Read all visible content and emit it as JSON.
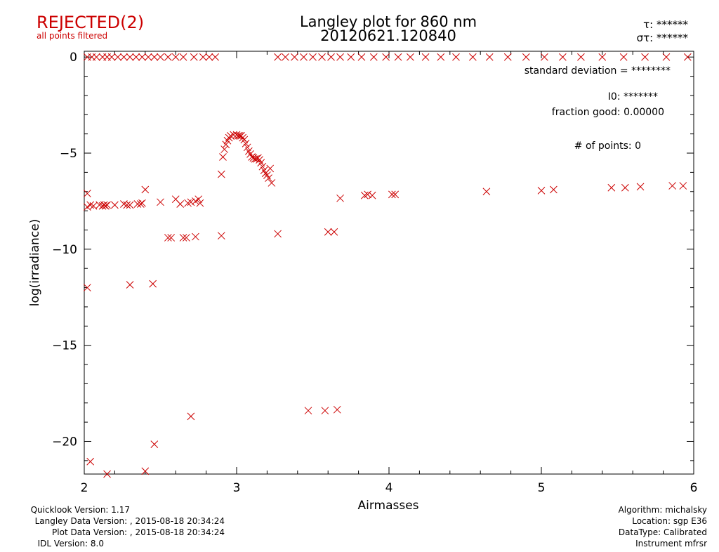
{
  "status": {
    "label": "REJECTED(2)",
    "sublabel": "all points filtered"
  },
  "header": {
    "title": "Langley plot for 860 nm",
    "subtitle": "20120621.120840",
    "tau_label": "τ: ******",
    "sigma_label": "στ: ******"
  },
  "stats": {
    "std_dev": "standard deviation  = ********",
    "i0": "I0: *******",
    "fraction_good": "fraction good: 0.00000",
    "num_points": "# of points:     0"
  },
  "footer_left": [
    "Quicklook Version: 1.17",
    "Langley Data Version: , 2015-08-18 20:34:24",
    "Plot Data Version: , 2015-08-18 20:34:24",
    "IDL Version: 8.0"
  ],
  "footer_right": [
    "Algorithm: michalsky",
    "Location: sgp E36",
    "DataType: Calibrated",
    "Instrument mfrsr"
  ],
  "colors": {
    "points": "#cc0000",
    "status": "#cc0000",
    "axis": "#000000"
  },
  "chart_data": {
    "type": "scatter",
    "title": "Langley plot for 860 nm",
    "subtitle": "20120621.120840",
    "xlabel": "Airmasses",
    "ylabel": "log(irradiance)",
    "xlim": [
      2,
      6
    ],
    "ylim": [
      -21.7,
      0.3
    ],
    "xticks": [
      2,
      3,
      4,
      5,
      6
    ],
    "yticks": [
      0,
      -5,
      -10,
      -15,
      -20
    ],
    "grid": false,
    "marker": "x",
    "points": [
      [
        2.02,
        -7.1
      ],
      [
        2.02,
        -7.8
      ],
      [
        2.04,
        -7.7
      ],
      [
        2.06,
        -7.75
      ],
      [
        2.1,
        -7.7
      ],
      [
        2.12,
        -7.75
      ],
      [
        2.13,
        -7.7
      ],
      [
        2.14,
        -7.75
      ],
      [
        2.15,
        -7.7
      ],
      [
        2.2,
        -7.7
      ],
      [
        2.26,
        -7.65
      ],
      [
        2.28,
        -7.7
      ],
      [
        2.3,
        -7.7
      ],
      [
        2.35,
        -7.65
      ],
      [
        2.37,
        -7.65
      ],
      [
        2.38,
        -7.6
      ],
      [
        2.4,
        -6.9
      ],
      [
        2.5,
        -7.55
      ],
      [
        2.55,
        -9.4
      ],
      [
        2.57,
        -9.4
      ],
      [
        2.6,
        -7.4
      ],
      [
        2.63,
        -7.65
      ],
      [
        2.65,
        -9.4
      ],
      [
        2.67,
        -9.4
      ],
      [
        2.68,
        -7.6
      ],
      [
        2.7,
        -7.55
      ],
      [
        2.73,
        -9.35
      ],
      [
        2.73,
        -7.5
      ],
      [
        2.75,
        -7.4
      ],
      [
        2.76,
        -7.6
      ],
      [
        2.9,
        -9.3
      ],
      [
        2.9,
        -6.1
      ],
      [
        2.91,
        -5.2
      ],
      [
        2.92,
        -4.8
      ],
      [
        2.93,
        -4.55
      ],
      [
        2.94,
        -4.35
      ],
      [
        2.95,
        -4.2
      ],
      [
        2.96,
        -4.1
      ],
      [
        2.98,
        -4.05
      ],
      [
        3.0,
        -4.05
      ],
      [
        3.01,
        -4.1
      ],
      [
        3.02,
        -4.1
      ],
      [
        3.03,
        -4.1
      ],
      [
        3.04,
        -4.2
      ],
      [
        3.05,
        -4.3
      ],
      [
        3.06,
        -4.5
      ],
      [
        3.07,
        -4.7
      ],
      [
        3.08,
        -4.9
      ],
      [
        3.09,
        -5.05
      ],
      [
        3.1,
        -5.2
      ],
      [
        3.11,
        -5.25
      ],
      [
        3.12,
        -5.3
      ],
      [
        3.13,
        -5.3
      ],
      [
        3.14,
        -5.25
      ],
      [
        3.15,
        -5.35
      ],
      [
        3.16,
        -5.5
      ],
      [
        3.17,
        -5.7
      ],
      [
        3.18,
        -5.9
      ],
      [
        3.19,
        -6.05
      ],
      [
        3.2,
        -6.15
      ],
      [
        3.21,
        -6.3
      ],
      [
        3.22,
        -5.8
      ],
      [
        3.23,
        -6.55
      ],
      [
        3.27,
        -9.2
      ],
      [
        3.47,
        -18.4
      ],
      [
        3.58,
        -18.4
      ],
      [
        3.6,
        -9.1
      ],
      [
        3.64,
        -9.1
      ],
      [
        3.66,
        -18.35
      ],
      [
        3.68,
        -7.35
      ],
      [
        3.84,
        -7.2
      ],
      [
        3.86,
        -7.15
      ],
      [
        3.89,
        -7.2
      ],
      [
        4.02,
        -7.15
      ],
      [
        4.04,
        -7.15
      ],
      [
        4.64,
        -7.0
      ],
      [
        5.0,
        -6.95
      ],
      [
        5.08,
        -6.9
      ],
      [
        5.46,
        -6.8
      ],
      [
        5.55,
        -6.8
      ],
      [
        5.65,
        -6.75
      ],
      [
        5.86,
        -6.7
      ],
      [
        5.93,
        -6.7
      ],
      [
        2.02,
        -12.0
      ],
      [
        2.04,
        -21.05
      ],
      [
        2.15,
        -21.7
      ],
      [
        2.3,
        -11.85
      ],
      [
        2.4,
        -21.55
      ],
      [
        2.45,
        -11.8
      ],
      [
        2.46,
        -20.15
      ],
      [
        2.7,
        -18.7
      ],
      [
        2.02,
        0
      ],
      [
        2.05,
        0
      ],
      [
        2.08,
        0
      ],
      [
        2.12,
        0
      ],
      [
        2.15,
        0
      ],
      [
        2.18,
        0
      ],
      [
        2.22,
        0
      ],
      [
        2.26,
        0
      ],
      [
        2.3,
        0
      ],
      [
        2.34,
        0
      ],
      [
        2.38,
        0
      ],
      [
        2.42,
        0
      ],
      [
        2.46,
        0
      ],
      [
        2.5,
        0
      ],
      [
        2.55,
        0
      ],
      [
        2.6,
        0
      ],
      [
        2.65,
        0
      ],
      [
        2.72,
        0
      ],
      [
        2.78,
        0
      ],
      [
        2.82,
        0
      ],
      [
        2.86,
        0
      ],
      [
        3.27,
        0
      ],
      [
        3.32,
        0
      ],
      [
        3.38,
        0
      ],
      [
        3.44,
        0
      ],
      [
        3.5,
        0
      ],
      [
        3.56,
        0
      ],
      [
        3.62,
        0
      ],
      [
        3.68,
        0
      ],
      [
        3.75,
        0
      ],
      [
        3.82,
        0
      ],
      [
        3.9,
        0
      ],
      [
        3.98,
        0
      ],
      [
        4.06,
        0
      ],
      [
        4.14,
        0
      ],
      [
        4.24,
        0
      ],
      [
        4.34,
        0
      ],
      [
        4.44,
        0
      ],
      [
        4.55,
        0
      ],
      [
        4.66,
        0
      ],
      [
        4.78,
        0
      ],
      [
        4.9,
        0
      ],
      [
        5.02,
        0
      ],
      [
        5.14,
        0
      ],
      [
        5.26,
        0
      ],
      [
        5.4,
        0
      ],
      [
        5.54,
        0
      ],
      [
        5.68,
        0
      ],
      [
        5.82,
        0
      ],
      [
        5.96,
        0
      ]
    ]
  }
}
